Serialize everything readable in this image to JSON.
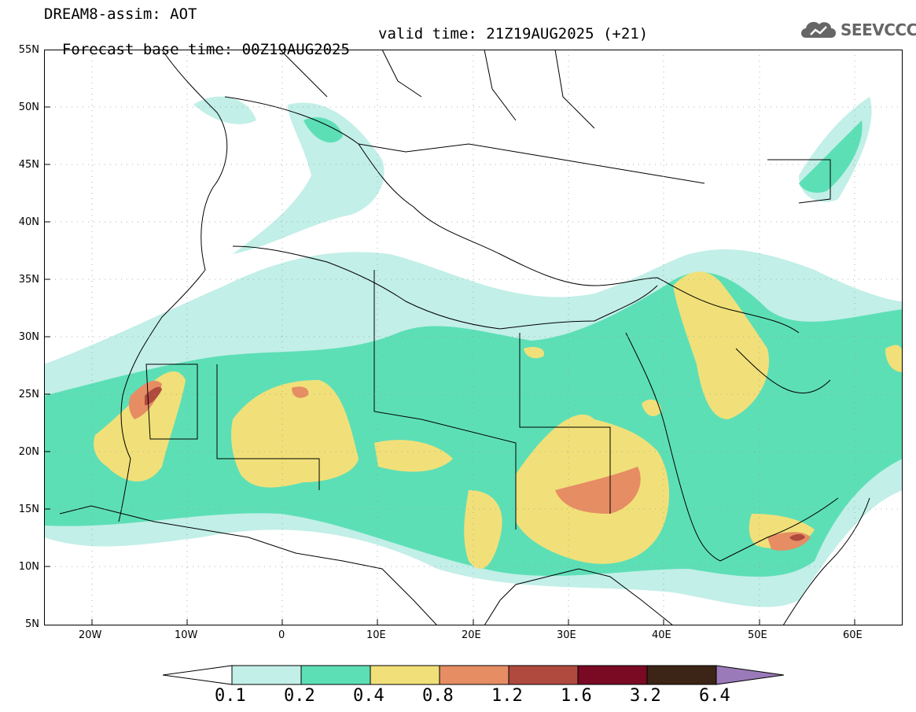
{
  "header": {
    "title": "DREAM8-assim: AOT",
    "base_time": "Forecast base time: 00Z19AUG2025",
    "valid_time": "valid time: 21Z19AUG2025 (+21)"
  },
  "logo": {
    "text": "SEEVCCC",
    "icon": "cloud-icon"
  },
  "map": {
    "lat_labels": [
      "55N",
      "50N",
      "45N",
      "40N",
      "35N",
      "30N",
      "25N",
      "20N",
      "15N",
      "10N",
      "5N"
    ],
    "lon_labels": [
      "20W",
      "10W",
      "0",
      "10E",
      "20E",
      "30E",
      "40E",
      "50E",
      "60E"
    ],
    "lat_range": [
      5,
      55
    ],
    "lon_range": [
      -25,
      65
    ]
  },
  "colorbar": {
    "levels": [
      "0.1",
      "0.2",
      "0.4",
      "0.8",
      "1.2",
      "1.6",
      "3.2",
      "6.4"
    ],
    "colors": [
      "#c2efe8",
      "#5ddfb6",
      "#f1e079",
      "#e68d64",
      "#b04a3e",
      "#7a0a24",
      "#3c2416",
      "#9a7ab8"
    ]
  }
}
